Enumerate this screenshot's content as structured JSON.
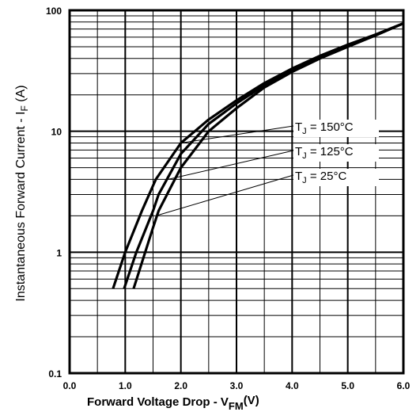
{
  "chart_data": {
    "type": "line",
    "x_scale": "linear",
    "y_scale": "log",
    "xlim": [
      0.0,
      6.0
    ],
    "ylim": [
      0.1,
      100
    ],
    "x_tick_labels": [
      "0.0",
      "1.0",
      "2.0",
      "3.0",
      "4.0",
      "5.0",
      "6.0"
    ],
    "y_tick_labels": [
      "0.1",
      "1",
      "10",
      "100"
    ],
    "grid": true,
    "xlabel": {
      "main": "Forward Voltage Drop - V",
      "sub": "FM",
      "unit": "(V)"
    },
    "ylabel": {
      "main": "Instantaneous Forward Current - I",
      "sub": "F",
      "unit": " (A)"
    },
    "series": [
      {
        "name": "T_J = 150°C",
        "label_main": "T",
        "label_sub": "J",
        "label_rest": " = 150°C",
        "x": [
          0.78,
          1.0,
          1.3,
          1.55,
          2.0,
          2.5,
          3.0,
          3.5,
          4.0,
          4.5,
          5.0,
          5.5,
          6.0
        ],
        "y": [
          0.5,
          1.0,
          2.2,
          4.0,
          8.0,
          12.5,
          18.0,
          25.0,
          33.0,
          42.0,
          52.0,
          63.0,
          78.0
        ]
      },
      {
        "name": "T_J = 125°C",
        "label_main": "T",
        "label_sub": "J",
        "label_rest": " = 125°C",
        "x": [
          0.98,
          1.2,
          1.5,
          1.6,
          2.0,
          2.5,
          3.0,
          3.5,
          4.0,
          4.5,
          5.0,
          5.5,
          6.0
        ],
        "y": [
          0.5,
          1.0,
          2.2,
          3.0,
          6.5,
          11.5,
          17.0,
          24.0,
          32.0,
          41.0,
          51.0,
          62.0,
          78.0
        ]
      },
      {
        "name": "T_J = 25°C",
        "label_main": "T",
        "label_sub": "J",
        "label_rest": " =   25°C",
        "x": [
          1.15,
          1.5,
          1.6,
          2.0,
          2.5,
          3.0,
          3.5,
          4.0,
          4.5,
          5.0,
          5.5,
          6.0
        ],
        "y": [
          0.5,
          1.6,
          2.2,
          5.0,
          10.0,
          15.5,
          23.0,
          31.0,
          40.0,
          50.0,
          62.0,
          78.0
        ]
      }
    ]
  }
}
